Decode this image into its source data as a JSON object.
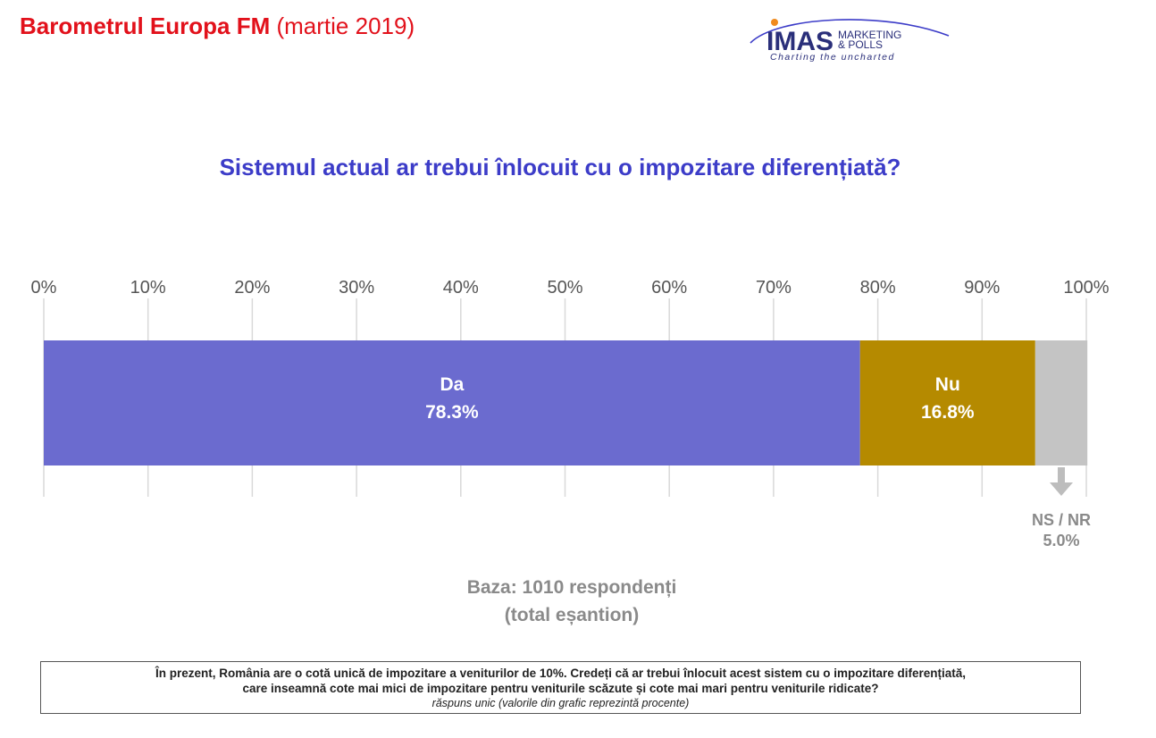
{
  "header": {
    "title_bold": "Barometrul Europa FM",
    "title_rest": "(martie 2019)"
  },
  "logo": {
    "name": "IMAS",
    "line1": "MARKETING",
    "line2": "& POLLS",
    "tagline": "Charting the uncharted",
    "colors": {
      "brand": "#2a2f7a",
      "accent": "#f08a1c",
      "swoosh": "#3c3cc8"
    }
  },
  "question": "Sistemul actual ar trebui înlocuit cu o impozitare diferențiată?",
  "chart_data": {
    "type": "bar",
    "orientation": "horizontal-stacked",
    "xlim": [
      0,
      100
    ],
    "ticks": [
      "0%",
      "10%",
      "20%",
      "30%",
      "40%",
      "50%",
      "60%",
      "70%",
      "80%",
      "90%",
      "100%"
    ],
    "grid": "vertical",
    "series": [
      {
        "name": "Da",
        "value": 78.3,
        "label": "78.3%",
        "color": "#6b6bcf"
      },
      {
        "name": "Nu",
        "value": 16.8,
        "label": "16.8%",
        "color": "#b58a00"
      },
      {
        "name": "NS / NR",
        "value": 5.0,
        "label": "5.0%",
        "color": "#c4c4c4"
      }
    ]
  },
  "base_note": {
    "line1": "Baza: 1010 respondenți",
    "line2": "(total eșantion)"
  },
  "footnote": {
    "line1": "În prezent, România are o cotă unică de impozitare a veniturilor de 10%. Credeți că ar trebui înlocuit acest sistem cu o impozitare diferențiată,",
    "line2": "care inseamnă cote mai mici de impozitare pentru veniturile scăzute și cote mai mari pentru veniturile ridicate?",
    "note": "răspuns unic (valorile din grafic reprezintă procente)"
  }
}
